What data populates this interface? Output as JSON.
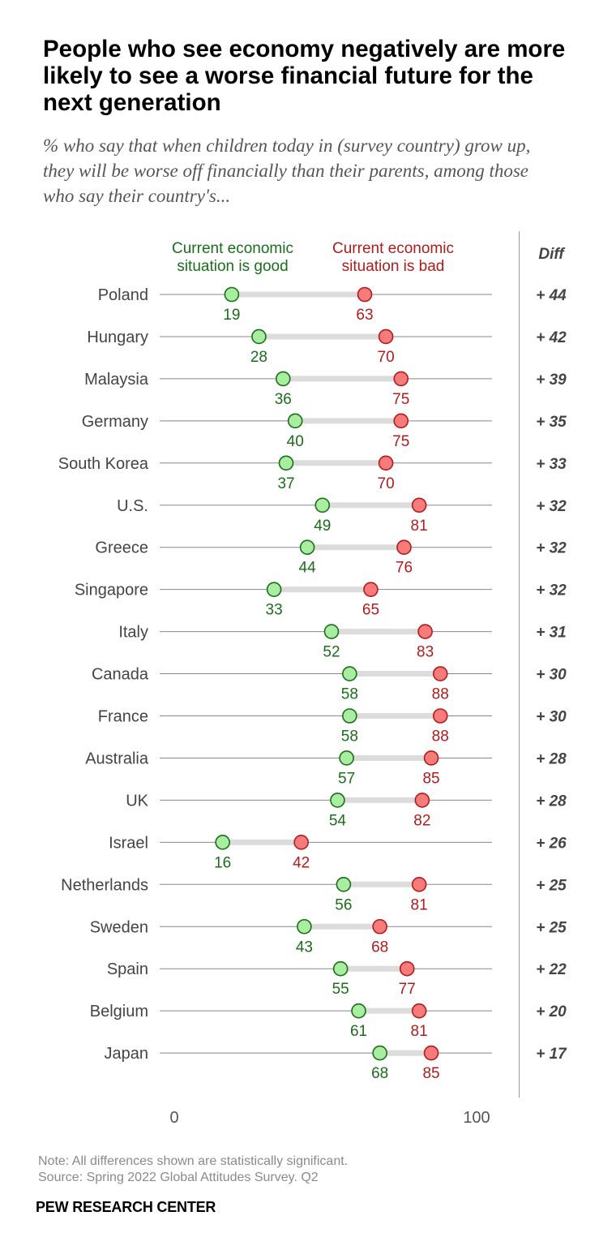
{
  "header": {
    "title": "People who see economy negatively are more likely to see a worse financial future for the next generation",
    "subtitle": "% who say that when children today in (survey country) grow up, they will be worse off financially than their parents, among those who say their country's..."
  },
  "footer": {
    "note": "Note: All differences shown are statistically significant.",
    "source": "Source: Spring 2022 Global Attitudes Survey. Q2",
    "brand": "PEW RESEARCH CENTER"
  },
  "colors": {
    "good_fill": "#a8eda0",
    "good_stroke": "#1a6e1a",
    "good_text": "#1a6e1a",
    "bad_fill": "#f77b7b",
    "bad_stroke": "#b01c1c",
    "bad_text": "#b01c1c"
  },
  "chart_data": {
    "type": "dot-plot",
    "title": "People who see economy negatively are more likely to see a worse financial future for the next generation",
    "subtitle": "% who say that when children today in (survey country) grow up, they will be worse off financially than their parents, among those who say their country's...",
    "xlim": [
      0,
      100
    ],
    "x_ticks": [
      "0",
      "100"
    ],
    "legend_position": "top",
    "diff_header": "Diff",
    "series": [
      {
        "name": "Current economic situation is good",
        "key": "good"
      },
      {
        "name": "Current economic situation is bad",
        "key": "bad"
      }
    ],
    "categories": [
      "Poland",
      "Hungary",
      "Malaysia",
      "Germany",
      "South Korea",
      "U.S.",
      "Greece",
      "Singapore",
      "Italy",
      "Canada",
      "France",
      "Australia",
      "UK",
      "Israel",
      "Netherlands",
      "Sweden",
      "Spain",
      "Belgium",
      "Japan"
    ],
    "good": [
      19,
      28,
      36,
      40,
      37,
      49,
      44,
      33,
      52,
      58,
      58,
      57,
      54,
      16,
      56,
      43,
      55,
      61,
      68
    ],
    "bad": [
      63,
      70,
      75,
      75,
      70,
      81,
      76,
      65,
      83,
      88,
      88,
      85,
      82,
      42,
      81,
      68,
      77,
      81,
      85
    ],
    "diff": [
      "+ 44",
      "+ 42",
      "+ 39",
      "+ 35",
      "+ 33",
      "+ 32",
      "+ 32",
      "+ 32",
      "+ 31",
      "+ 30",
      "+ 30",
      "+ 28",
      "+ 28",
      "+ 26",
      "+ 25",
      "+ 25",
      "+ 22",
      "+ 20",
      "+ 17"
    ]
  }
}
